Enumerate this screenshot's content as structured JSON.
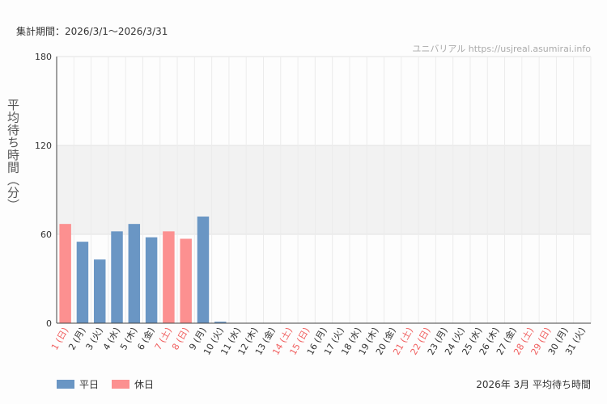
{
  "header": {
    "period_label": "集計期間：2026/3/1～2026/3/31",
    "watermark": "ユニバリアル  https://usjreal.asumirai.info"
  },
  "footer": {
    "caption": "2026年 3月 平均待ち時間"
  },
  "colors": {
    "weekday": "#6a96c4",
    "holiday": "#fc9090",
    "holiday_text": "#f06060",
    "band": "#f2f2f2"
  },
  "chart_data": {
    "type": "bar",
    "ylabel": "平均待ち時間（分）",
    "ylim": [
      0,
      180
    ],
    "yticks": [
      0,
      60,
      120,
      180
    ],
    "shaded_band": [
      60,
      120
    ],
    "categories": [
      "1 (日)",
      "2 (月)",
      "3 (火)",
      "4 (水)",
      "5 (木)",
      "6 (金)",
      "7 (土)",
      "8 (日)",
      "9 (月)",
      "10 (火)",
      "11 (水)",
      "12 (木)",
      "13 (金)",
      "14 (土)",
      "15 (日)",
      "16 (月)",
      "17 (火)",
      "18 (水)",
      "19 (木)",
      "20 (金)",
      "21 (土)",
      "22 (日)",
      "23 (月)",
      "24 (火)",
      "25 (水)",
      "26 (木)",
      "27 (金)",
      "28 (土)",
      "29 (日)",
      "30 (月)",
      "31 (火)"
    ],
    "day_types": [
      "holiday",
      "weekday",
      "weekday",
      "weekday",
      "weekday",
      "weekday",
      "holiday",
      "holiday",
      "weekday",
      "weekday",
      "weekday",
      "weekday",
      "weekday",
      "holiday",
      "holiday",
      "weekday",
      "weekday",
      "weekday",
      "weekday",
      "weekday",
      "holiday",
      "holiday",
      "weekday",
      "weekday",
      "weekday",
      "weekday",
      "weekday",
      "holiday",
      "holiday",
      "weekday",
      "weekday"
    ],
    "values": [
      67,
      55,
      43,
      62,
      67,
      58,
      62,
      57,
      72,
      1,
      null,
      null,
      null,
      null,
      null,
      null,
      null,
      null,
      null,
      null,
      null,
      null,
      null,
      null,
      null,
      null,
      null,
      null,
      null,
      null,
      null
    ],
    "legend": [
      {
        "name": "平日",
        "type": "weekday"
      },
      {
        "name": "休日",
        "type": "holiday"
      }
    ]
  }
}
